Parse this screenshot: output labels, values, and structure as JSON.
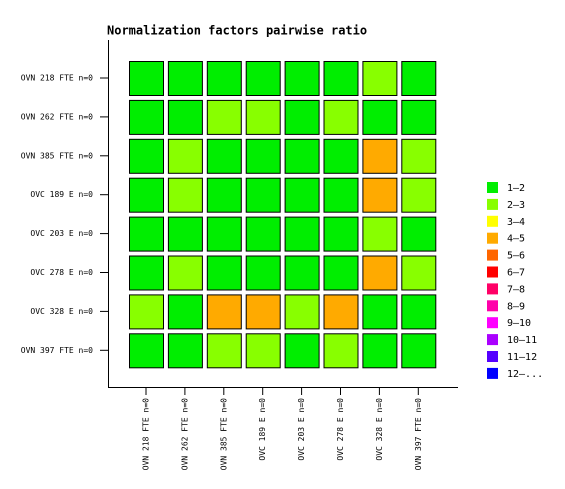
{
  "chart_data": {
    "type": "heatmap",
    "title": "Normalization factors pairwise ratio",
    "rows": [
      "OVN 218 FTE n=0",
      "OVN 262 FTE n=0",
      "OVN 385 FTE n=0",
      "OVC 189 E n=0",
      "OVC 203 E n=0",
      "OVC 278 E n=0",
      "OVC 328 E n=0",
      "OVN 397 FTE n=0"
    ],
    "columns": [
      "OVN 218 FTE n=0",
      "OVN 262 FTE n=0",
      "OVN 385 FTE n=0",
      "OVC 189 E n=0",
      "OVC 203 E n=0",
      "OVC 278 E n=0",
      "OVC 328 E n=0",
      "OVN 397 FTE n=0"
    ],
    "values": [
      [
        1.5,
        1.5,
        1.5,
        1.5,
        1.5,
        1.5,
        2.5,
        1.5
      ],
      [
        1.5,
        1.5,
        2.5,
        2.5,
        1.5,
        2.5,
        1.5,
        1.5
      ],
      [
        1.5,
        2.5,
        1.5,
        1.5,
        1.5,
        1.5,
        4.5,
        2.5
      ],
      [
        1.5,
        2.5,
        1.5,
        1.5,
        1.5,
        1.5,
        4.5,
        2.5
      ],
      [
        1.5,
        1.5,
        1.5,
        1.5,
        1.5,
        1.5,
        2.5,
        1.5
      ],
      [
        1.5,
        2.5,
        1.5,
        1.5,
        1.5,
        1.5,
        4.5,
        2.5
      ],
      [
        2.5,
        1.5,
        4.5,
        4.5,
        2.5,
        4.5,
        1.5,
        1.5
      ],
      [
        1.5,
        1.5,
        2.5,
        2.5,
        1.5,
        2.5,
        1.5,
        1.5
      ]
    ],
    "legend": [
      {
        "label": "1–2",
        "min": 1,
        "color": "#00ee00"
      },
      {
        "label": "2–3",
        "min": 2,
        "color": "#88ff00"
      },
      {
        "label": "3–4",
        "min": 3,
        "color": "#ffff00"
      },
      {
        "label": "4–5",
        "min": 4,
        "color": "#ffaa00"
      },
      {
        "label": "5–6",
        "min": 5,
        "color": "#ff6600"
      },
      {
        "label": "6–7",
        "min": 6,
        "color": "#ff0000"
      },
      {
        "label": "7–8",
        "min": 7,
        "color": "#ff0066"
      },
      {
        "label": "8–9",
        "min": 8,
        "color": "#ff00aa"
      },
      {
        "label": "9–10",
        "min": 9,
        "color": "#ff00ff"
      },
      {
        "label": "10–11",
        "min": 10,
        "color": "#aa00ff"
      },
      {
        "label": "11–12",
        "min": 11,
        "color": "#5500ff"
      },
      {
        "label": "12–...",
        "min": 12,
        "color": "#0000ff"
      }
    ]
  }
}
